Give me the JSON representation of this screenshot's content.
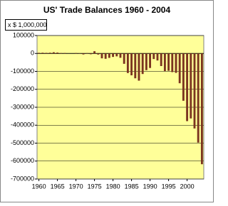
{
  "chart_data": {
    "type": "bar",
    "title": "US' Trade Balances 1960 - 2004",
    "ylabel": "x $ 1,000,000",
    "x": [
      1960,
      1961,
      1962,
      1963,
      1964,
      1965,
      1966,
      1967,
      1968,
      1969,
      1970,
      1971,
      1972,
      1973,
      1974,
      1975,
      1976,
      1977,
      1978,
      1979,
      1980,
      1981,
      1982,
      1983,
      1984,
      1985,
      1986,
      1987,
      1988,
      1989,
      1990,
      1991,
      1992,
      1993,
      1994,
      1995,
      1996,
      1997,
      1998,
      1999,
      2000,
      2001,
      2002,
      2003,
      2004
    ],
    "values": [
      3500,
      4200,
      3400,
      4200,
      6800,
      5000,
      2300,
      2500,
      300,
      100,
      2300,
      -1300,
      -5400,
      1900,
      -4300,
      12400,
      -6100,
      -27200,
      -29800,
      -24600,
      -19400,
      -16200,
      -24200,
      -57800,
      -109100,
      -121900,
      -138500,
      -151700,
      -114600,
      -93100,
      -80900,
      -31100,
      -39200,
      -70300,
      -98500,
      -96400,
      -104100,
      -108300,
      -166100,
      -263800,
      -377300,
      -362300,
      -418200,
      -496900,
      -617600
    ],
    "color": "#7b3420",
    "plot_color": "#ffff99",
    "xlim": [
      1959.5,
      2004.5
    ],
    "xticks": [
      1960,
      1965,
      1970,
      1975,
      1980,
      1985,
      1990,
      1995,
      2000
    ],
    "ylim": [
      -700000,
      100000
    ],
    "yticks": [
      100000,
      0,
      -100000,
      -200000,
      -300000,
      -400000,
      -500000,
      -600000,
      -700000
    ],
    "grid": true
  }
}
